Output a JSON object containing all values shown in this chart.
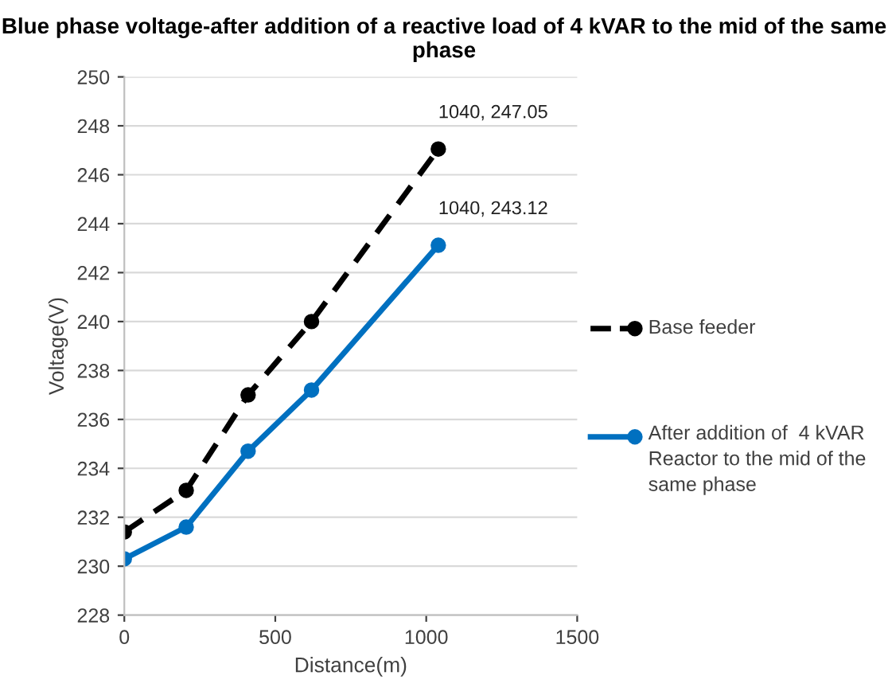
{
  "chart_data": {
    "type": "line",
    "title": "Blue phase voltage-after addition of a reactive load of 4 kVAR to the mid of the same phase",
    "xlabel": "Distance(m)",
    "ylabel": "Voltage(V)",
    "xlim": [
      0,
      1500
    ],
    "xticks": [
      0,
      500,
      1000,
      1500
    ],
    "ylim": [
      228,
      250
    ],
    "yticks": [
      228,
      230,
      232,
      234,
      236,
      238,
      240,
      242,
      244,
      246,
      248,
      250
    ],
    "grid": "y",
    "legend": "right",
    "marker": "circle",
    "series": [
      {
        "name": "Base feeder",
        "color": "#000000",
        "line_style": "dashed",
        "x": [
          0,
          205,
          410,
          620,
          1040
        ],
        "values": [
          231.4,
          233.1,
          237.0,
          240.0,
          247.05
        ]
      },
      {
        "name": "After addition of  4 kVAR Reactor to the mid of the same phase",
        "color": "#0070c0",
        "line_style": "solid",
        "x": [
          0,
          205,
          410,
          620,
          1040
        ],
        "values": [
          230.3,
          231.6,
          234.7,
          237.2,
          243.12
        ]
      }
    ],
    "annotations": [
      {
        "text": "1040, 247.05",
        "x": 1040,
        "y": 247.05
      },
      {
        "text": "1040, 243.12",
        "x": 1040,
        "y": 243.12
      }
    ]
  }
}
